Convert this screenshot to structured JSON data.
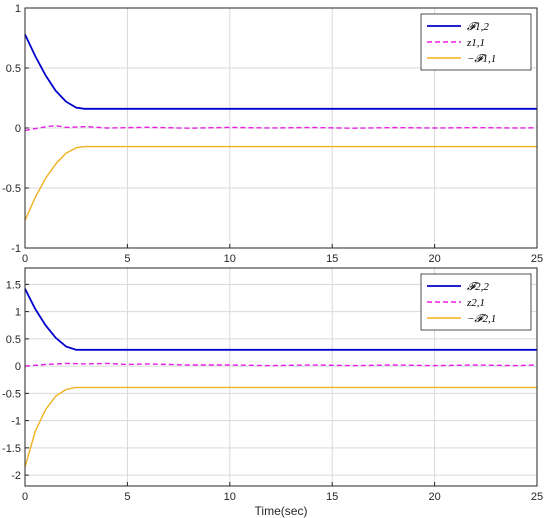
{
  "chart_data": [
    {
      "type": "line",
      "xlim": [
        0,
        25
      ],
      "ylim": [
        -1,
        1
      ],
      "xticks": [
        "0",
        "5",
        "10",
        "15",
        "20",
        "25"
      ],
      "yticks": [
        "-1",
        "-0.5",
        "0",
        "0.5",
        "1"
      ],
      "grid": true,
      "legend_position": "top-right",
      "series": [
        {
          "name": "𝓕1,2",
          "color": "#0000cc",
          "style": "solid",
          "x": [
            0,
            0.5,
            1.0,
            1.5,
            2.0,
            2.5,
            2.9,
            25
          ],
          "y": [
            0.78,
            0.6,
            0.44,
            0.31,
            0.22,
            0.17,
            0.16,
            0.16
          ]
        },
        {
          "name": "z1,1",
          "color": "#e61ee6",
          "style": "dashed",
          "x": [
            0,
            0.5,
            1.0,
            1.5,
            2.0,
            3,
            4,
            6,
            8,
            10,
            12,
            14,
            16,
            18,
            20,
            22,
            24,
            25
          ],
          "y": [
            -0.02,
            -0.005,
            0.01,
            0.02,
            0.005,
            0.012,
            0.0,
            0.006,
            -0.002,
            0.005,
            0.0,
            0.004,
            -0.002,
            0.003,
            0.0,
            0.003,
            0.0,
            0.002
          ]
        },
        {
          "name": "−𝓕1,1",
          "color": "#f0b020",
          "style": "solid",
          "x": [
            0,
            0.5,
            1.0,
            1.5,
            2.0,
            2.5,
            2.9,
            25
          ],
          "y": [
            -0.77,
            -0.58,
            -0.42,
            -0.3,
            -0.21,
            -0.165,
            -0.155,
            -0.155
          ]
        }
      ]
    },
    {
      "type": "line",
      "xlabel": "Time(sec)",
      "xlim": [
        0,
        25
      ],
      "ylim": [
        -2.2,
        1.8
      ],
      "xticks": [
        "0",
        "5",
        "10",
        "15",
        "20",
        "25"
      ],
      "yticks": [
        "-2",
        "-1.5",
        "-1",
        "-0.5",
        "0",
        "0.5",
        "1",
        "1.5"
      ],
      "grid": true,
      "legend_position": "top-right",
      "series": [
        {
          "name": "𝓕2,2",
          "color": "#0000cc",
          "style": "solid",
          "x": [
            0,
            0.5,
            1.0,
            1.5,
            2.0,
            2.5,
            25
          ],
          "y": [
            1.42,
            1.05,
            0.75,
            0.52,
            0.36,
            0.3,
            0.3
          ]
        },
        {
          "name": "z2,1",
          "color": "#e61ee6",
          "style": "dashed",
          "x": [
            0,
            1,
            2,
            3,
            4,
            5,
            6,
            8,
            10,
            12,
            14,
            16,
            18,
            20,
            22,
            24,
            25
          ],
          "y": [
            0.0,
            0.03,
            0.05,
            0.04,
            0.05,
            0.03,
            0.04,
            0.02,
            0.02,
            0.01,
            0.02,
            0.01,
            0.02,
            0.01,
            0.02,
            0.01,
            0.02
          ]
        },
        {
          "name": "−𝓕2,1",
          "color": "#f0b020",
          "style": "solid",
          "x": [
            0,
            0.5,
            1.0,
            1.5,
            2.0,
            2.5,
            25
          ],
          "y": [
            -1.85,
            -1.2,
            -0.8,
            -0.55,
            -0.43,
            -0.39,
            -0.39
          ]
        }
      ]
    }
  ]
}
